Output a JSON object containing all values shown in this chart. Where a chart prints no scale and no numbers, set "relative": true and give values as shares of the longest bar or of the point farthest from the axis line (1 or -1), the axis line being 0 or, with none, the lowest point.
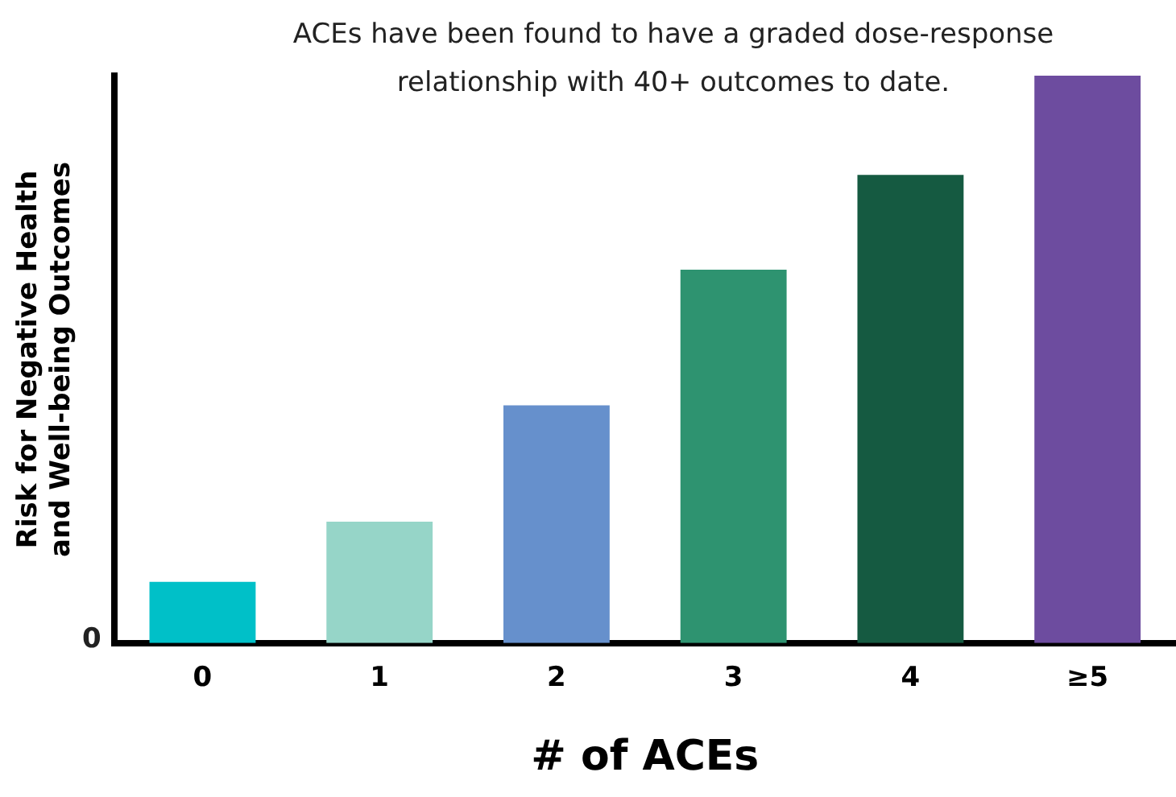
{
  "chart_data": {
    "type": "bar",
    "relative": true,
    "categories": [
      "0",
      "1",
      "2",
      "3",
      "4",
      "≥5"
    ],
    "values": [
      0.108,
      0.214,
      0.419,
      0.658,
      0.825,
      1
    ],
    "colors": [
      "#00c0c8",
      "#96d5c8",
      "#6690cc",
      "#2e9370",
      "#155a41",
      "#6d4c9f"
    ],
    "xlabel": "# of ACEs",
    "ylabel": "Risk for Negative Health\nand Well-being Outcomes",
    "annotations": [
      "ACEs have been found to have a graded dose-response\nrelationship with 40+ outcomes to date.",
      "0"
    ],
    "grid": false,
    "legend": false
  }
}
